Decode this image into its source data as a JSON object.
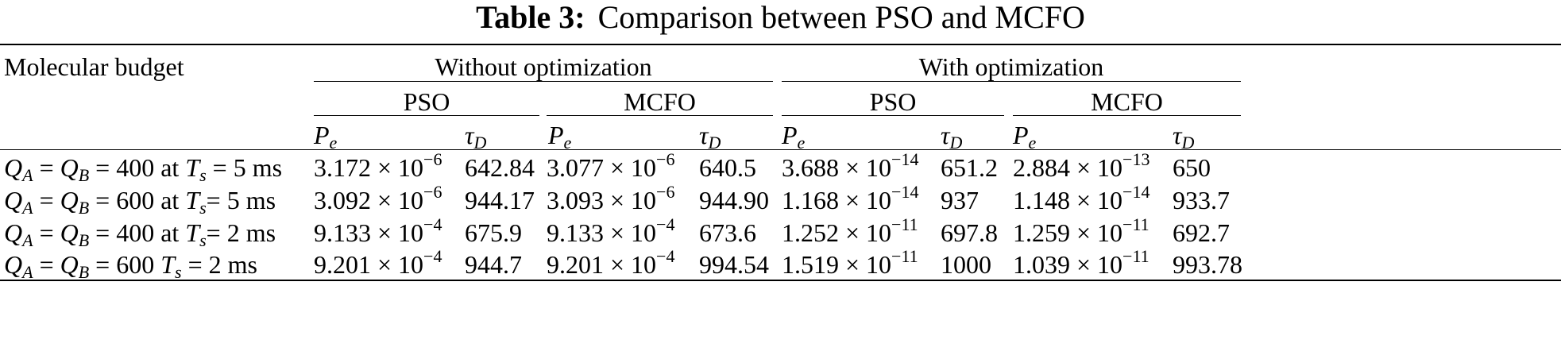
{
  "caption": {
    "label": "Table 3:",
    "text": "Comparison between PSO and MCFO"
  },
  "header": {
    "row_label": "Molecular budget",
    "group_without": "Without optimization",
    "group_with": "With optimization",
    "method_pso": "PSO",
    "method_mcfo": "MCFO",
    "col_pe_base": "P",
    "col_pe_sub": "e",
    "col_tau_base": "τ",
    "col_tau_sub": "D"
  },
  "rows": [
    {
      "budget": {
        "q": "Q",
        "a": "A",
        "eq1": " = ",
        "qb": "Q",
        "b": "B",
        "eq2": " = ",
        "val": "400 at ",
        "t": "T",
        "s": "s",
        "tail": " = 5 ms"
      },
      "wo_pso_pe": {
        "m": "3.172 × 10",
        "e": "−6"
      },
      "wo_pso_tau": "642.84",
      "wo_mcfo_pe": {
        "m": "3.077 × 10",
        "e": "−6"
      },
      "wo_mcfo_tau": "640.5",
      "w_pso_pe": {
        "m": "3.688 × 10",
        "e": "−14"
      },
      "w_pso_tau": "651.2",
      "w_mcfo_pe": {
        "m": "2.884 × 10",
        "e": "−13"
      },
      "w_mcfo_tau": "650"
    },
    {
      "budget": {
        "q": "Q",
        "a": "A",
        "eq1": " = ",
        "qb": "Q",
        "b": "B",
        "eq2": " = ",
        "val": "600 at ",
        "t": "T",
        "s": "s",
        "tail": "= 5 ms"
      },
      "wo_pso_pe": {
        "m": "3.092 × 10",
        "e": "−6"
      },
      "wo_pso_tau": "944.17",
      "wo_mcfo_pe": {
        "m": "3.093 × 10",
        "e": "−6"
      },
      "wo_mcfo_tau": "944.90",
      "w_pso_pe": {
        "m": "1.168 × 10",
        "e": "−14"
      },
      "w_pso_tau": "937",
      "w_mcfo_pe": {
        "m": "1.148 × 10",
        "e": "−14"
      },
      "w_mcfo_tau": "933.7"
    },
    {
      "budget": {
        "q": "Q",
        "a": "A",
        "eq1": " = ",
        "qb": "Q",
        "b": "B",
        "eq2": " = ",
        "val": "400 at ",
        "t": "T",
        "s": "s",
        "tail": "= 2 ms"
      },
      "wo_pso_pe": {
        "m": "9.133 × 10",
        "e": "−4"
      },
      "wo_pso_tau": "675.9",
      "wo_mcfo_pe": {
        "m": "9.133 × 10",
        "e": "−4"
      },
      "wo_mcfo_tau": "673.6",
      "w_pso_pe": {
        "m": "1.252 × 10",
        "e": "−11"
      },
      "w_pso_tau": "697.8",
      "w_mcfo_pe": {
        "m": "1.259 × 10",
        "e": "−11"
      },
      "w_mcfo_tau": "692.7"
    },
    {
      "budget": {
        "q": "Q",
        "a": "A",
        "eq1": " = ",
        "qb": "Q",
        "b": "B",
        "eq2": " = ",
        "val": "600 ",
        "t": "T",
        "s": "s",
        "tail": " = 2 ms"
      },
      "wo_pso_pe": {
        "m": "9.201 × 10",
        "e": "−4"
      },
      "wo_pso_tau": "944.7",
      "wo_mcfo_pe": {
        "m": "9.201 × 10",
        "e": "−4"
      },
      "wo_mcfo_tau": "994.54",
      "w_pso_pe": {
        "m": "1.519 × 10",
        "e": "−11"
      },
      "w_pso_tau": "1000",
      "w_mcfo_pe": {
        "m": "1.039 × 10",
        "e": "−11"
      },
      "w_mcfo_tau": "993.78"
    }
  ]
}
